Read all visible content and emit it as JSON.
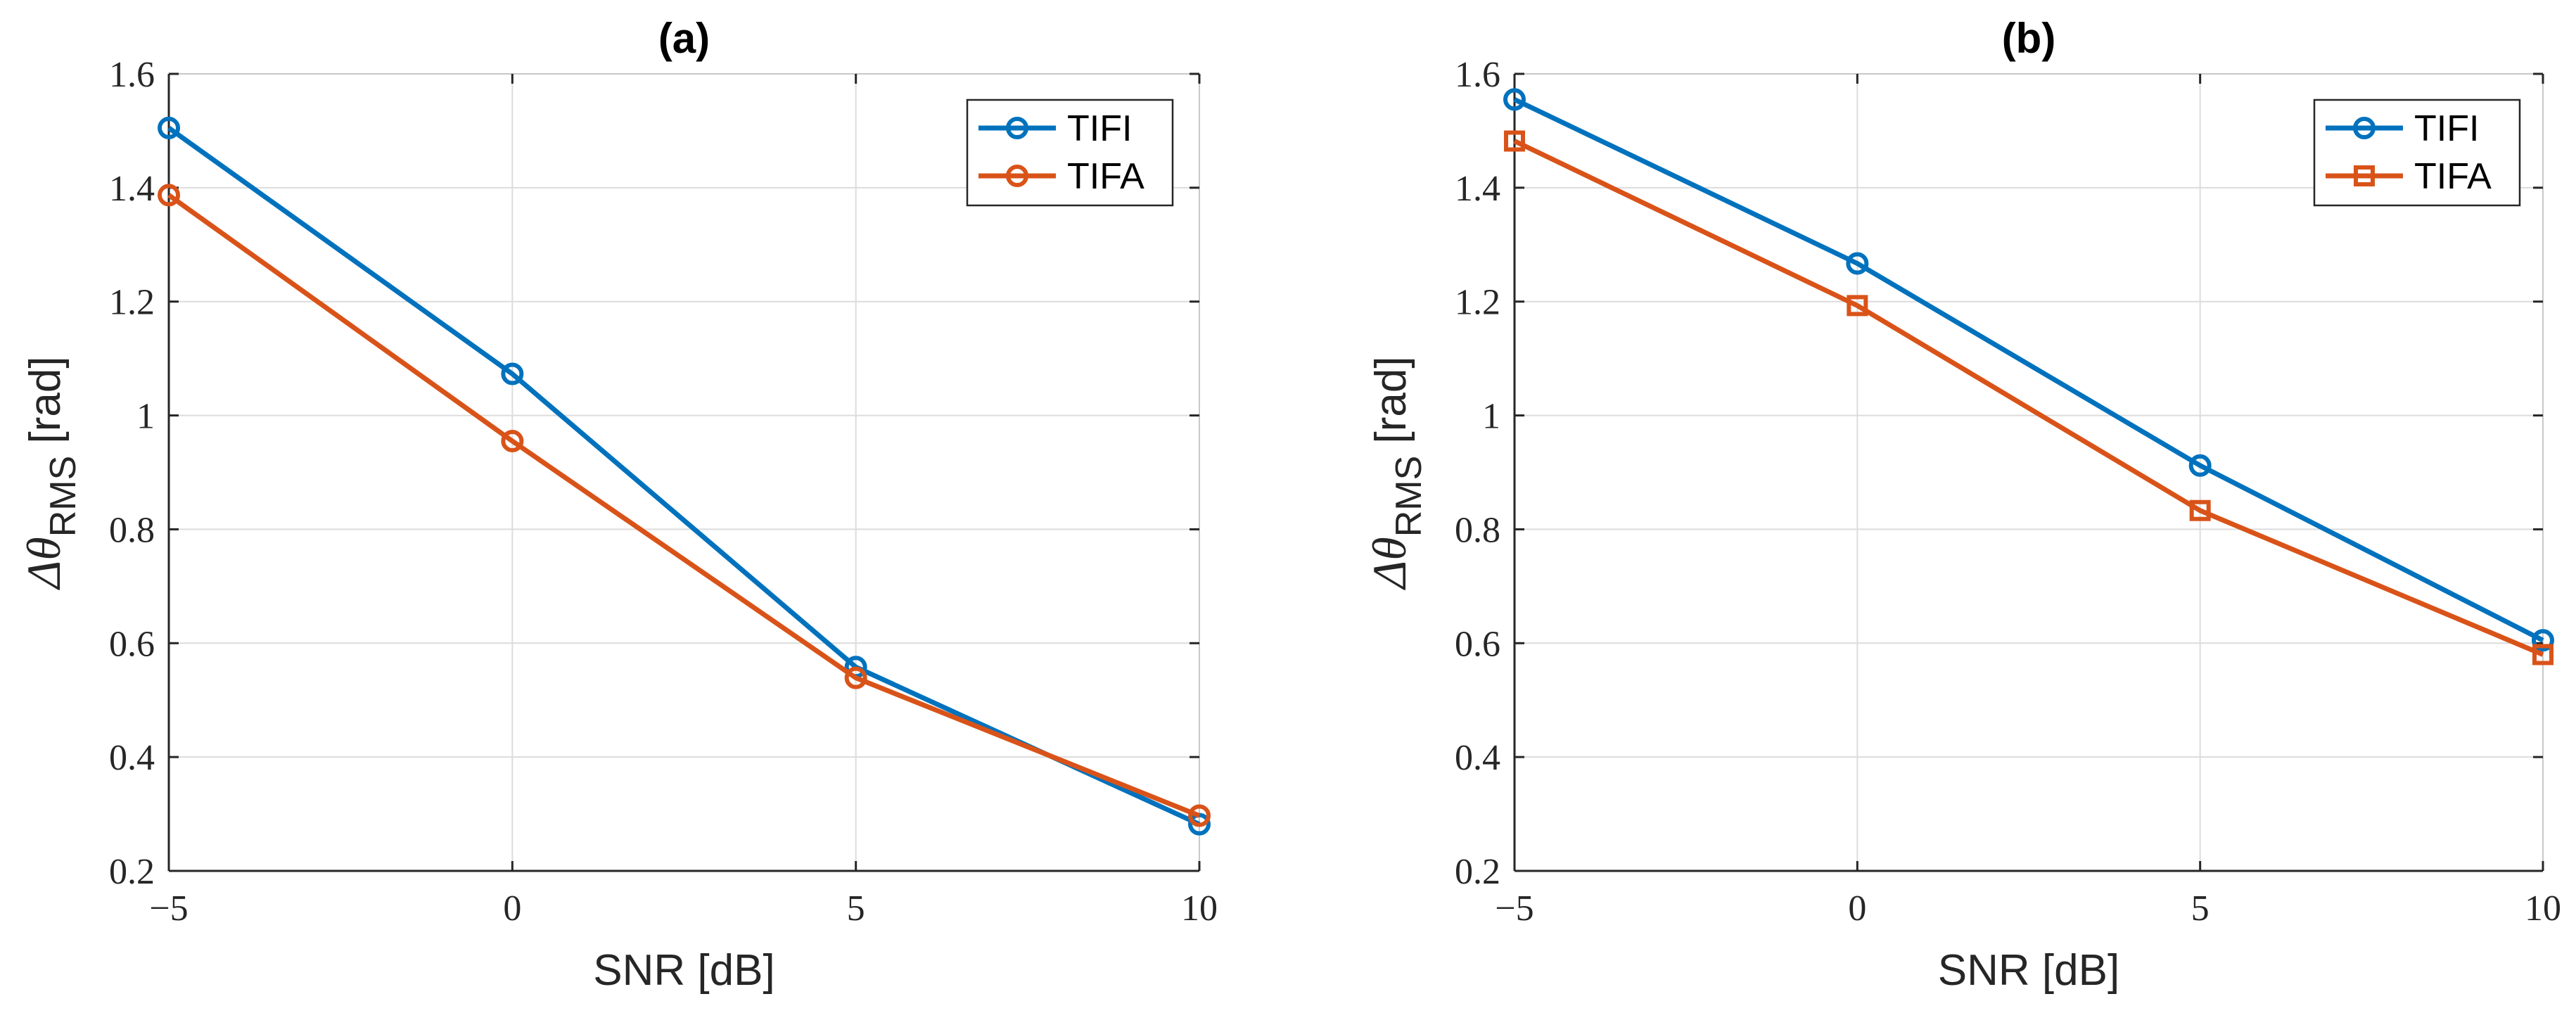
{
  "chart_data": [
    {
      "type": "line",
      "title": "(a)",
      "xlabel": "SNR [dB]",
      "ylabel": "Δθ",
      "ylabel_sub": "RMS",
      "ylabel_unit": " [rad]",
      "x": [
        -5,
        0,
        5,
        10
      ],
      "xticks": [
        "−5",
        "0",
        "5",
        "10"
      ],
      "yticks": [
        "0.2",
        "0.4",
        "0.6",
        "0.8",
        "1",
        "1.2",
        "1.4",
        "1.6"
      ],
      "xlim": [
        -5,
        10
      ],
      "ylim": [
        0.2,
        1.6
      ],
      "grid": true,
      "legend_position": "top-right",
      "series": [
        {
          "name": "TIFI",
          "values": [
            1.505,
            1.073,
            0.558,
            0.282
          ],
          "color": "#0072BD",
          "marker": "circle"
        },
        {
          "name": "TIFA",
          "values": [
            1.387,
            0.955,
            0.539,
            0.297
          ],
          "color": "#D95319",
          "marker": "circle"
        }
      ]
    },
    {
      "type": "line",
      "title": "(b)",
      "xlabel": "SNR [dB]",
      "ylabel": "Δθ",
      "ylabel_sub": "RMS",
      "ylabel_unit": " [rad]",
      "x": [
        -5,
        0,
        5,
        10
      ],
      "xticks": [
        "−5",
        "0",
        "5",
        "10"
      ],
      "yticks": [
        "0.2",
        "0.4",
        "0.6",
        "0.8",
        "1",
        "1.2",
        "1.4",
        "1.6"
      ],
      "xlim": [
        -5,
        10
      ],
      "ylim": [
        0.2,
        1.6
      ],
      "grid": true,
      "legend_position": "top-right",
      "series": [
        {
          "name": "TIFI",
          "values": [
            1.555,
            1.267,
            0.912,
            0.605
          ],
          "color": "#0072BD",
          "marker": "circle"
        },
        {
          "name": "TIFA",
          "values": [
            1.482,
            1.193,
            0.833,
            0.58
          ],
          "color": "#D95319",
          "marker": "square"
        }
      ]
    }
  ]
}
